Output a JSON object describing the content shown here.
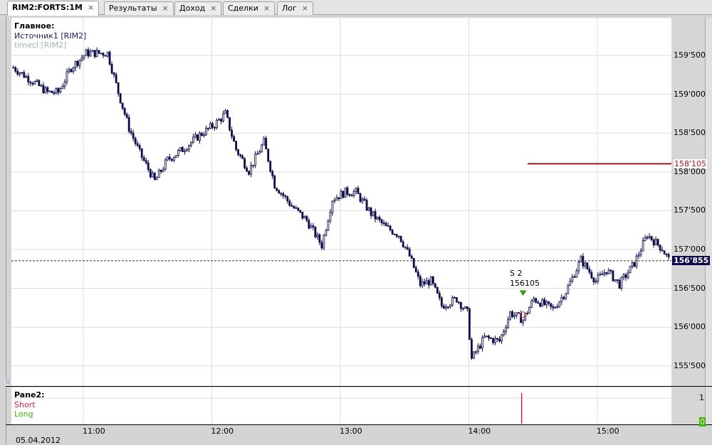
{
  "tabs": [
    {
      "label": "RIM2:FORTS:1M",
      "active": true
    },
    {
      "label": "Результаты"
    },
    {
      "label": "Доход"
    },
    {
      "label": "Сделки"
    },
    {
      "label": "Лог"
    }
  ],
  "close_icon": "×",
  "main_pane": {
    "title": "Главное:",
    "source": "Источник1 [RIM2]",
    "indicator": "timecl [RIM2]",
    "zero_label": "0"
  },
  "pane2": {
    "title": "Pane2:",
    "short": "Short",
    "long": "Long",
    "axis_top": "1",
    "axis_zero": "0"
  },
  "colors": {
    "candle": "#0a0a4a",
    "short": "#d0203c",
    "long": "#3cb400",
    "level": "#a01818",
    "current": "#0a0a4a"
  },
  "signal": {
    "label": "S 2",
    "price": "156105",
    "time": "14:25"
  },
  "level_line": {
    "value": 158105,
    "label": "158'105"
  },
  "current_price": {
    "value": 156855,
    "label": "156'855"
  },
  "date_label": "05.04.2012",
  "chart_data": {
    "type": "candlestick",
    "ylim": [
      155250,
      159960
    ],
    "y_ticks": [
      {
        "v": 159500,
        "t": "159'500"
      },
      {
        "v": 159000,
        "t": "159'000"
      },
      {
        "v": 158500,
        "t": "158'500"
      },
      {
        "v": 158000,
        "t": "158'000"
      },
      {
        "v": 157500,
        "t": "157'500"
      },
      {
        "v": 157000,
        "t": "157'000"
      },
      {
        "v": 156500,
        "t": "156'500"
      },
      {
        "v": 156000,
        "t": "156'000"
      },
      {
        "v": 155500,
        "t": "155'500"
      }
    ],
    "x_ticks": [
      "11:00",
      "12:00",
      "13:00",
      "14:00",
      "15:00"
    ],
    "close_path": [
      [
        "10:27",
        159345
      ],
      [
        "10:34",
        159205
      ],
      [
        "10:43",
        159025
      ],
      [
        "10:48",
        159025
      ],
      [
        "10:54",
        159345
      ],
      [
        "11:01",
        159530
      ],
      [
        "11:11",
        159530
      ],
      [
        "11:16",
        159025
      ],
      [
        "11:21",
        158565
      ],
      [
        "11:26",
        158245
      ],
      [
        "11:33",
        157880
      ],
      [
        "11:39",
        158155
      ],
      [
        "11:46",
        158290
      ],
      [
        "11:54",
        158475
      ],
      [
        "12:01",
        158610
      ],
      [
        "12:06",
        158750
      ],
      [
        "12:11",
        158290
      ],
      [
        "12:17",
        158015
      ],
      [
        "12:24",
        158385
      ],
      [
        "12:29",
        157835
      ],
      [
        "12:37",
        157560
      ],
      [
        "12:44",
        157375
      ],
      [
        "12:51",
        157055
      ],
      [
        "12:56",
        157650
      ],
      [
        "13:02",
        157740
      ],
      [
        "13:07",
        157740
      ],
      [
        "13:14",
        157465
      ],
      [
        "13:21",
        157285
      ],
      [
        "13:27",
        157190
      ],
      [
        "13:32",
        156915
      ],
      [
        "13:37",
        156550
      ],
      [
        "13:42",
        156595
      ],
      [
        "13:47",
        156275
      ],
      [
        "13:54",
        156365
      ],
      [
        "13:59",
        156185
      ],
      [
        "14:01",
        155590
      ],
      [
        "14:07",
        155865
      ],
      [
        "14:14",
        155820
      ],
      [
        "14:19",
        156185
      ],
      [
        "14:25",
        156095
      ],
      [
        "14:30",
        156365
      ],
      [
        "14:39",
        156230
      ],
      [
        "14:45",
        156460
      ],
      [
        "14:52",
        156870
      ],
      [
        "14:59",
        156595
      ],
      [
        "15:04",
        156735
      ],
      [
        "15:10",
        156550
      ],
      [
        "15:17",
        156825
      ],
      [
        "15:23",
        157190
      ],
      [
        "15:30",
        157010
      ],
      [
        "15:33",
        156870
      ]
    ],
    "pane2_short_spike": {
      "time": "14:25",
      "value": 1
    }
  }
}
